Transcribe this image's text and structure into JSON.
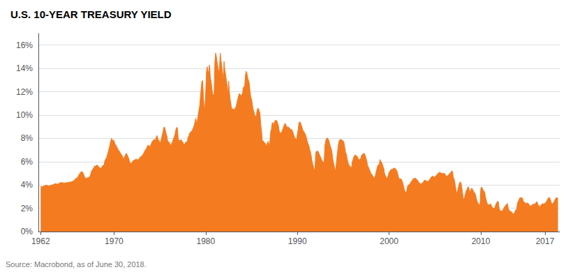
{
  "chart_data": {
    "type": "area",
    "title": "U.S. 10-YEAR TREASURY YIELD",
    "source": "Source: Macrobond, as of June 30, 2018.",
    "color": "#F47B20",
    "grid": true,
    "ylim": [
      0,
      17
    ],
    "yticks": [
      {
        "value": 0,
        "label": "0%"
      },
      {
        "value": 2,
        "label": "2%"
      },
      {
        "value": 4,
        "label": "4%"
      },
      {
        "value": 6,
        "label": "6%"
      },
      {
        "value": 8,
        "label": "8%"
      },
      {
        "value": 10,
        "label": "10%"
      },
      {
        "value": 12,
        "label": "12%"
      },
      {
        "value": 14,
        "label": "14%"
      },
      {
        "value": 16,
        "label": "16%"
      }
    ],
    "xlim": [
      1961.75,
      2018.6
    ],
    "xticks": [
      1962,
      1970,
      1980,
      1990,
      2000,
      2010,
      2017
    ],
    "x": [
      1962.0,
      1962.083,
      1962.167,
      1962.25,
      1962.333,
      1962.417,
      1962.5,
      1962.583,
      1962.667,
      1962.75,
      1962.833,
      1962.917,
      1963.0,
      1963.083,
      1963.167,
      1963.25,
      1963.333,
      1963.417,
      1963.5,
      1963.583,
      1963.667,
      1963.75,
      1963.833,
      1963.917,
      1964.0,
      1964.083,
      1964.167,
      1964.25,
      1964.333,
      1964.417,
      1964.5,
      1964.583,
      1964.667,
      1964.75,
      1964.833,
      1964.917,
      1965.0,
      1965.083,
      1965.167,
      1965.25,
      1965.333,
      1965.417,
      1965.5,
      1965.583,
      1965.667,
      1965.75,
      1965.833,
      1965.917,
      1966.0,
      1966.083,
      1966.167,
      1966.25,
      1966.333,
      1966.417,
      1966.5,
      1966.583,
      1966.667,
      1966.75,
      1966.833,
      1966.917,
      1967.0,
      1967.083,
      1967.167,
      1967.25,
      1967.333,
      1967.417,
      1967.5,
      1967.583,
      1967.667,
      1967.75,
      1967.833,
      1967.917,
      1968.0,
      1968.083,
      1968.167,
      1968.25,
      1968.333,
      1968.417,
      1968.5,
      1968.583,
      1968.667,
      1968.75,
      1968.833,
      1968.917,
      1969.0,
      1969.083,
      1969.167,
      1969.25,
      1969.333,
      1969.417,
      1969.5,
      1969.583,
      1969.667,
      1969.75,
      1969.833,
      1969.917,
      1970.0,
      1970.083,
      1970.167,
      1970.25,
      1970.333,
      1970.417,
      1970.5,
      1970.583,
      1970.667,
      1970.75,
      1970.833,
      1970.917,
      1971.0,
      1971.083,
      1971.167,
      1971.25,
      1971.333,
      1971.417,
      1971.5,
      1971.583,
      1971.667,
      1971.75,
      1971.833,
      1971.917,
      1972.0,
      1972.083,
      1972.167,
      1972.25,
      1972.333,
      1972.417,
      1972.5,
      1972.583,
      1972.667,
      1972.75,
      1972.833,
      1972.917,
      1973.0,
      1973.083,
      1973.167,
      1973.25,
      1973.333,
      1973.417,
      1973.5,
      1973.583,
      1973.667,
      1973.75,
      1973.833,
      1973.917,
      1974.0,
      1974.083,
      1974.167,
      1974.25,
      1974.333,
      1974.417,
      1974.5,
      1974.583,
      1974.667,
      1974.75,
      1974.833,
      1974.917,
      1975.0,
      1975.083,
      1975.167,
      1975.25,
      1975.333,
      1975.417,
      1975.5,
      1975.583,
      1975.667,
      1975.75,
      1975.833,
      1975.917,
      1976.0,
      1976.083,
      1976.167,
      1976.25,
      1976.333,
      1976.417,
      1976.5,
      1976.583,
      1976.667,
      1976.75,
      1976.833,
      1976.917,
      1977.0,
      1977.083,
      1977.167,
      1977.25,
      1977.333,
      1977.417,
      1977.5,
      1977.583,
      1977.667,
      1977.75,
      1977.833,
      1977.917,
      1978.0,
      1978.083,
      1978.167,
      1978.25,
      1978.333,
      1978.417,
      1978.5,
      1978.583,
      1978.667,
      1978.75,
      1978.833,
      1978.917,
      1979.0,
      1979.083,
      1979.167,
      1979.25,
      1979.333,
      1979.417,
      1979.5,
      1979.583,
      1979.667,
      1979.75,
      1979.833,
      1979.917,
      1980.0,
      1980.083,
      1980.167,
      1980.25,
      1980.333,
      1980.417,
      1980.5,
      1980.583,
      1980.667,
      1980.75,
      1980.833,
      1980.917,
      1981.0,
      1981.083,
      1981.167,
      1981.25,
      1981.333,
      1981.417,
      1981.5,
      1981.583,
      1981.667,
      1981.75,
      1981.833,
      1981.917,
      1982.0,
      1982.083,
      1982.167,
      1982.25,
      1982.333,
      1982.417,
      1982.5,
      1982.583,
      1982.667,
      1982.75,
      1982.833,
      1982.917,
      1983.0,
      1983.083,
      1983.167,
      1983.25,
      1983.333,
      1983.417,
      1983.5,
      1983.583,
      1983.667,
      1983.75,
      1983.833,
      1983.917,
      1984.0,
      1984.083,
      1984.167,
      1984.25,
      1984.333,
      1984.417,
      1984.5,
      1984.583,
      1984.667,
      1984.75,
      1984.833,
      1984.917,
      1985.0,
      1985.083,
      1985.167,
      1985.25,
      1985.333,
      1985.417,
      1985.5,
      1985.583,
      1985.667,
      1985.75,
      1985.833,
      1985.917,
      1986.0,
      1986.083,
      1986.167,
      1986.25,
      1986.333,
      1986.417,
      1986.5,
      1986.583,
      1986.667,
      1986.75,
      1986.833,
      1986.917,
      1987.0,
      1987.083,
      1987.167,
      1987.25,
      1987.333,
      1987.417,
      1987.5,
      1987.583,
      1987.667,
      1987.75,
      1987.833,
      1987.917,
      1988.0,
      1988.083,
      1988.167,
      1988.25,
      1988.333,
      1988.417,
      1988.5,
      1988.583,
      1988.667,
      1988.75,
      1988.833,
      1988.917,
      1989.0,
      1989.083,
      1989.167,
      1989.25,
      1989.333,
      1989.417,
      1989.5,
      1989.583,
      1989.667,
      1989.75,
      1989.833,
      1989.917,
      1990.0,
      1990.083,
      1990.167,
      1990.25,
      1990.333,
      1990.417,
      1990.5,
      1990.583,
      1990.667,
      1990.75,
      1990.833,
      1990.917,
      1991.0,
      1991.083,
      1991.167,
      1991.25,
      1991.333,
      1991.417,
      1991.5,
      1991.583,
      1991.667,
      1991.75,
      1991.833,
      1991.917,
      1992.0,
      1992.083,
      1992.167,
      1992.25,
      1992.333,
      1992.417,
      1992.5,
      1992.583,
      1992.667,
      1992.75,
      1992.833,
      1992.917,
      1993.0,
      1993.083,
      1993.167,
      1993.25,
      1993.333,
      1993.417,
      1993.5,
      1993.583,
      1993.667,
      1993.75,
      1993.833,
      1993.917,
      1994.0,
      1994.083,
      1994.167,
      1994.25,
      1994.333,
      1994.417,
      1994.5,
      1994.583,
      1994.667,
      1994.75,
      1994.833,
      1994.917,
      1995.0,
      1995.083,
      1995.167,
      1995.25,
      1995.333,
      1995.417,
      1995.5,
      1995.583,
      1995.667,
      1995.75,
      1995.833,
      1995.917,
      1996.0,
      1996.083,
      1996.167,
      1996.25,
      1996.333,
      1996.417,
      1996.5,
      1996.583,
      1996.667,
      1996.75,
      1996.833,
      1996.917,
      1997.0,
      1997.083,
      1997.167,
      1997.25,
      1997.333,
      1997.417,
      1997.5,
      1997.583,
      1997.667,
      1997.75,
      1997.833,
      1997.917,
      1998.0,
      1998.083,
      1998.167,
      1998.25,
      1998.333,
      1998.417,
      1998.5,
      1998.583,
      1998.667,
      1998.75,
      1998.833,
      1998.917,
      1999.0,
      1999.083,
      1999.167,
      1999.25,
      1999.333,
      1999.417,
      1999.5,
      1999.583,
      1999.667,
      1999.75,
      1999.833,
      1999.917,
      2000.0,
      2000.083,
      2000.167,
      2000.25,
      2000.333,
      2000.417,
      2000.5,
      2000.583,
      2000.667,
      2000.75,
      2000.833,
      2000.917,
      2001.0,
      2001.083,
      2001.167,
      2001.25,
      2001.333,
      2001.417,
      2001.5,
      2001.583,
      2001.667,
      2001.75,
      2001.833,
      2001.917,
      2002.0,
      2002.083,
      2002.167,
      2002.25,
      2002.333,
      2002.417,
      2002.5,
      2002.583,
      2002.667,
      2002.75,
      2002.833,
      2002.917,
      2003.0,
      2003.083,
      2003.167,
      2003.25,
      2003.333,
      2003.417,
      2003.5,
      2003.583,
      2003.667,
      2003.75,
      2003.833,
      2003.917,
      2004.0,
      2004.083,
      2004.167,
      2004.25,
      2004.333,
      2004.417,
      2004.5,
      2004.583,
      2004.667,
      2004.75,
      2004.833,
      2004.917,
      2005.0,
      2005.083,
      2005.167,
      2005.25,
      2005.333,
      2005.417,
      2005.5,
      2005.583,
      2005.667,
      2005.75,
      2005.833,
      2005.917,
      2006.0,
      2006.083,
      2006.167,
      2006.25,
      2006.333,
      2006.417,
      2006.5,
      2006.583,
      2006.667,
      2006.75,
      2006.833,
      2006.917,
      2007.0,
      2007.083,
      2007.167,
      2007.25,
      2007.333,
      2007.417,
      2007.5,
      2007.583,
      2007.667,
      2007.75,
      2007.833,
      2007.917,
      2008.0,
      2008.083,
      2008.167,
      2008.25,
      2008.333,
      2008.417,
      2008.5,
      2008.583,
      2008.667,
      2008.75,
      2008.833,
      2008.917,
      2009.0,
      2009.083,
      2009.167,
      2009.25,
      2009.333,
      2009.417,
      2009.5,
      2009.583,
      2009.667,
      2009.75,
      2009.833,
      2009.917,
      2010.0,
      2010.083,
      2010.167,
      2010.25,
      2010.333,
      2010.417,
      2010.5,
      2010.583,
      2010.667,
      2010.75,
      2010.833,
      2010.917,
      2011.0,
      2011.083,
      2011.167,
      2011.25,
      2011.333,
      2011.417,
      2011.5,
      2011.583,
      2011.667,
      2011.75,
      2011.833,
      2011.917,
      2012.0,
      2012.083,
      2012.167,
      2012.25,
      2012.333,
      2012.417,
      2012.5,
      2012.583,
      2012.667,
      2012.75,
      2012.833,
      2012.917,
      2013.0,
      2013.083,
      2013.167,
      2013.25,
      2013.333,
      2013.417,
      2013.5,
      2013.583,
      2013.667,
      2013.75,
      2013.833,
      2013.917,
      2014.0,
      2014.083,
      2014.167,
      2014.25,
      2014.333,
      2014.417,
      2014.5,
      2014.583,
      2014.667,
      2014.75,
      2014.833,
      2014.917,
      2015.0,
      2015.083,
      2015.167,
      2015.25,
      2015.333,
      2015.417,
      2015.5,
      2015.583,
      2015.667,
      2015.75,
      2015.833,
      2015.917,
      2016.0,
      2016.083,
      2016.167,
      2016.25,
      2016.333,
      2016.417,
      2016.5,
      2016.583,
      2016.667,
      2016.75,
      2016.833,
      2016.917,
      2017.0,
      2017.083,
      2017.167,
      2017.25,
      2017.333,
      2017.417,
      2017.5,
      2017.583,
      2017.667,
      2017.75,
      2017.833,
      2017.917,
      2018.0,
      2018.083,
      2018.167,
      2018.25,
      2018.333,
      2018.417
    ],
    "values": [
      3.85,
      3.87,
      3.85,
      3.87,
      3.9,
      3.93,
      3.95,
      3.98,
      3.97,
      3.95,
      3.93,
      3.9,
      3.93,
      3.97,
      4.0,
      4.0,
      4.01,
      4.05,
      4.08,
      4.1,
      4.1,
      4.08,
      4.07,
      4.05,
      4.17,
      4.18,
      4.19,
      4.21,
      4.2,
      4.18,
      4.17,
      4.18,
      4.17,
      4.19,
      4.2,
      4.21,
      4.22,
      4.25,
      4.23,
      4.24,
      4.27,
      4.29,
      4.32,
      4.35,
      4.4,
      4.5,
      4.55,
      4.6,
      4.61,
      4.73,
      4.86,
      4.97,
      5.05,
      5.14,
      5.15,
      5.09,
      4.93,
      4.8,
      4.6,
      4.57,
      4.58,
      4.61,
      4.63,
      4.65,
      4.7,
      4.81,
      5.06,
      5.25,
      5.33,
      5.44,
      5.54,
      5.65,
      5.54,
      5.68,
      5.71,
      5.65,
      5.54,
      5.5,
      5.42,
      5.45,
      5.54,
      5.65,
      5.7,
      5.68,
      6.1,
      6.2,
      6.32,
      6.51,
      6.75,
      7.0,
      7.24,
      7.55,
      7.84,
      8.0,
      7.72,
      7.88,
      7.79,
      7.55,
      7.45,
      7.35,
      7.21,
      7.09,
      6.97,
      6.89,
      6.78,
      6.67,
      6.57,
      6.5,
      6.24,
      6.31,
      6.45,
      6.59,
      6.72,
      6.61,
      6.47,
      6.31,
      6.08,
      5.89,
      5.81,
      5.93,
      5.95,
      6.08,
      6.13,
      6.15,
      6.18,
      6.22,
      6.18,
      6.15,
      6.21,
      6.27,
      6.36,
      6.44,
      6.46,
      6.54,
      6.63,
      6.73,
      6.88,
      7.01,
      7.08,
      7.22,
      7.38,
      7.41,
      7.35,
      7.25,
      7.43,
      7.55,
      7.73,
      7.78,
      7.89,
      7.9,
      7.85,
      8.05,
      8.24,
      8.09,
      7.78,
      7.84,
      7.57,
      7.71,
      7.94,
      8.27,
      8.5,
      8.92,
      8.98,
      8.73,
      8.45,
      8.23,
      7.85,
      7.59,
      7.72,
      7.52,
      7.39,
      7.53,
      7.65,
      7.78,
      8.0,
      8.16,
      8.4,
      8.75,
      8.95,
      8.86,
      7.98,
      7.8,
      7.82,
      7.87,
      7.85,
      7.72,
      7.68,
      7.54,
      7.41,
      7.56,
      7.69,
      7.64,
      7.78,
      8.1,
      8.2,
      8.45,
      8.53,
      8.57,
      8.64,
      8.78,
      8.93,
      9.15,
      9.4,
      9.73,
      9.28,
      9.53,
      9.95,
      10.36,
      10.73,
      11.48,
      12.25,
      12.9,
      12.96,
      11.56,
      10.58,
      10.74,
      12.0,
      13.72,
      14.15,
      13.5,
      13.85,
      14.3,
      13.28,
      12.87,
      12.34,
      11.81,
      11.72,
      11.82,
      14.59,
      15.32,
      14.98,
      14.5,
      14.09,
      13.7,
      13.97,
      15.32,
      14.71,
      14.21,
      13.64,
      13.06,
      14.59,
      13.86,
      13.5,
      13.0,
      12.57,
      11.68,
      12.92,
      11.97,
      11.33,
      10.94,
      10.54,
      10.54,
      10.46,
      10.55,
      10.42,
      10.64,
      10.81,
      11.1,
      11.38,
      11.65,
      11.84,
      11.79,
      11.53,
      11.78,
      11.67,
      12.31,
      12.43,
      12.51,
      13.44,
      13.75,
      13.56,
      13.18,
      12.98,
      12.73,
      12.06,
      11.52,
      11.38,
      10.91,
      10.51,
      10.3,
      10.03,
      9.91,
      9.78,
      10.33,
      10.57,
      10.55,
      10.35,
      10.16,
      9.18,
      8.7,
      7.78,
      7.78,
      7.73,
      7.58,
      7.58,
      7.33,
      7.45,
      7.66,
      7.74,
      7.33,
      7.67,
      8.55,
      8.78,
      9.33,
      9.34,
      9.03,
      9.43,
      9.54,
      9.55,
      9.52,
      9.34,
      9.11,
      8.72,
      8.45,
      8.43,
      8.53,
      8.61,
      8.81,
      8.99,
      9.2,
      9.29,
      9.13,
      9.03,
      8.93,
      8.99,
      8.9,
      8.87,
      8.72,
      8.8,
      8.69,
      8.54,
      8.33,
      8.11,
      8.02,
      7.95,
      7.9,
      8.37,
      8.77,
      9.31,
      9.42,
      9.36,
      9.14,
      8.96,
      8.72,
      8.61,
      8.52,
      8.39,
      8.25,
      8.0,
      7.72,
      7.52,
      7.38,
      7.07,
      6.84,
      6.52,
      6.08,
      5.79,
      5.59,
      5.31,
      5.28,
      6.79,
      6.88,
      6.94,
      6.87,
      6.75,
      6.58,
      6.42,
      6.28,
      6.13,
      6.02,
      5.93,
      5.99,
      7.37,
      7.78,
      7.98,
      8.04,
      7.98,
      7.83,
      7.6,
      7.34,
      7.15,
      6.93,
      6.37,
      5.94,
      5.71,
      5.36,
      5.28,
      5.85,
      6.57,
      7.09,
      7.61,
      7.84,
      7.9,
      7.92,
      7.84,
      7.81,
      7.78,
      7.61,
      7.22,
      6.8,
      6.66,
      6.29,
      5.98,
      5.74,
      5.69,
      5.52,
      5.52,
      5.57,
      6.03,
      6.21,
      6.44,
      6.55,
      6.57,
      6.51,
      6.47,
      6.34,
      6.2,
      6.16,
      6.2,
      6.3,
      6.57,
      6.58,
      6.66,
      6.74,
      6.65,
      6.49,
      6.25,
      5.97,
      5.63,
      5.52,
      5.34,
      5.23,
      4.98,
      4.94,
      4.85,
      4.72,
      4.6,
      4.62,
      4.81,
      5.08,
      5.38,
      5.64,
      5.74,
      5.65,
      6.18,
      6.02,
      5.98,
      5.81,
      5.58,
      5.43,
      5.01,
      4.82,
      4.68,
      4.58,
      4.66,
      4.85,
      5.11,
      5.16,
      5.28,
      5.35,
      5.33,
      5.37,
      5.44,
      5.45,
      5.42,
      5.33,
      5.22,
      5.04,
      4.73,
      4.55,
      4.51,
      4.53,
      4.49,
      4.36,
      4.12,
      3.88,
      3.59,
      3.4,
      3.33,
      3.48,
      3.84,
      3.97,
      4.04,
      4.08,
      4.18,
      4.3,
      4.36,
      4.48,
      4.55,
      4.56,
      4.57,
      4.56,
      4.49,
      4.41,
      4.34,
      4.22,
      4.14,
      4.1,
      4.1,
      4.14,
      4.18,
      4.27,
      4.39,
      4.41,
      4.35,
      4.36,
      4.31,
      4.31,
      4.35,
      4.46,
      4.55,
      4.65,
      4.73,
      4.75,
      4.72,
      4.65,
      4.71,
      4.78,
      4.84,
      4.91,
      4.98,
      5.06,
      5.09,
      5.06,
      5.02,
      4.97,
      4.99,
      5.0,
      4.98,
      4.96,
      4.84,
      4.75,
      4.75,
      4.81,
      4.88,
      4.97,
      5.02,
      5.1,
      5.2,
      5.17,
      4.64,
      4.53,
      4.22,
      3.78,
      3.43,
      3.25,
      3.62,
      3.87,
      4.16,
      4.26,
      4.2,
      3.84,
      3.37,
      2.87,
      2.73,
      3.0,
      3.26,
      3.52,
      3.61,
      3.82,
      3.83,
      3.57,
      3.35,
      3.62,
      3.72,
      3.67,
      3.5,
      3.41,
      3.3,
      3.2,
      2.9,
      2.63,
      2.49,
      2.38,
      2.3,
      2.28,
      3.68,
      3.83,
      3.72,
      3.56,
      3.45,
      3.42,
      3.0,
      2.73,
      2.49,
      2.33,
      2.28,
      2.3,
      2.34,
      2.36,
      2.2,
      2.08,
      2.04,
      1.97,
      1.95,
      2.2,
      2.38,
      2.5,
      2.6,
      2.54,
      1.97,
      1.83,
      1.78,
      1.75,
      1.77,
      1.87,
      1.98,
      2.11,
      2.2,
      2.27,
      2.36,
      2.4,
      1.97,
      1.82,
      1.78,
      1.72,
      1.7,
      1.64,
      1.47,
      1.56,
      1.54,
      1.76,
      1.87,
      1.93,
      2.43,
      2.58,
      2.73,
      2.89,
      2.89,
      2.89,
      2.91,
      2.75,
      2.54,
      2.51,
      2.5,
      2.37,
      2.43,
      2.46,
      2.42,
      2.33,
      2.22,
      2.17,
      2.22,
      2.27,
      2.33,
      2.37,
      2.33,
      2.4,
      2.44,
      2.57,
      2.48,
      2.3,
      2.2,
      2.14,
      2.2,
      2.29,
      2.35,
      2.41,
      2.35,
      2.4,
      2.42,
      2.48,
      2.57,
      2.71,
      2.85,
      2.94,
      2.89,
      2.77,
      2.55,
      2.35,
      2.4,
      2.46,
      2.58,
      2.71,
      2.84,
      2.92,
      2.89,
      2.86
    ]
  }
}
